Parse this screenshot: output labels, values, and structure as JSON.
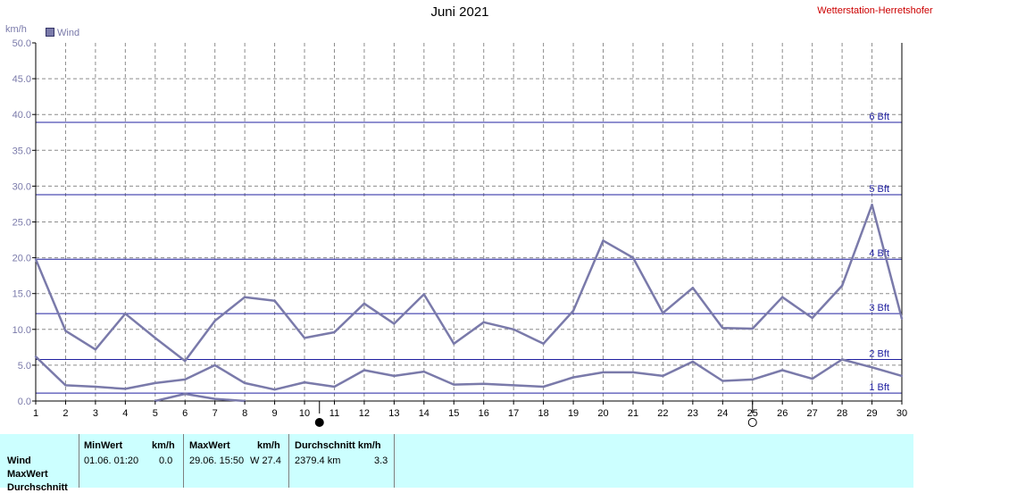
{
  "title": "Juni 2021",
  "station": "Wetterstation-Herretshofer",
  "y_unit": "km/h",
  "legend_label": "Wind",
  "colors": {
    "series": "#7a7aaa",
    "beaufort_line": "#2020a0",
    "grid": "#8c8c8c",
    "station": "#cc0000",
    "stats_bg": "#ccffff"
  },
  "chart_data": {
    "type": "line",
    "title": "Juni 2021",
    "ylabel": "km/h",
    "xlim": [
      1,
      30
    ],
    "ylim": [
      0,
      50
    ],
    "x_ticks": [
      "1",
      "2",
      "3",
      "4",
      "5",
      "6",
      "7",
      "8",
      "9",
      "10",
      "11",
      "12",
      "13",
      "14",
      "15",
      "16",
      "17",
      "18",
      "19",
      "20",
      "21",
      "22",
      "23",
      "24",
      "25",
      "26",
      "27",
      "28",
      "29",
      "30"
    ],
    "y_ticks": [
      "0.0",
      "5.0",
      "10.0",
      "15.0",
      "20.0",
      "25.0",
      "30.0",
      "35.0",
      "40.0",
      "45.0",
      "50.0"
    ],
    "grid": true,
    "legend_position": "top-left",
    "series": [
      {
        "name": "Wind",
        "role": "max",
        "x": [
          1,
          2,
          3,
          4,
          5,
          6,
          7,
          8,
          9,
          10,
          11,
          12,
          13,
          14,
          15,
          16,
          17,
          18,
          19,
          20,
          21,
          22,
          23,
          24,
          25,
          26,
          27,
          28,
          29,
          30
        ],
        "values": [
          19.8,
          9.8,
          7.2,
          12.2,
          8.8,
          5.6,
          11.2,
          14.5,
          14.0,
          8.8,
          9.6,
          13.6,
          10.8,
          14.9,
          8.0,
          11.0,
          10.0,
          8.0,
          12.6,
          22.4,
          20.0,
          12.3,
          15.8,
          10.2,
          10.1,
          14.5,
          11.6,
          16.1,
          27.4,
          11.5
        ]
      },
      {
        "name": "Wind",
        "role": "average",
        "x": [
          1,
          2,
          3,
          4,
          5,
          6,
          7,
          8,
          9,
          10,
          11,
          12,
          13,
          14,
          15,
          16,
          17,
          18,
          19,
          20,
          21,
          22,
          23,
          24,
          25,
          26,
          27,
          28,
          29,
          30
        ],
        "values": [
          6.2,
          2.2,
          2.0,
          1.7,
          2.5,
          3.0,
          5.0,
          2.5,
          1.6,
          2.6,
          2.0,
          4.3,
          3.5,
          4.1,
          2.3,
          2.4,
          2.2,
          2.0,
          3.3,
          4.0,
          4.0,
          3.5,
          5.5,
          2.8,
          3.0,
          4.3,
          3.1,
          5.8,
          4.7,
          3.5
        ]
      },
      {
        "name": "Wind",
        "role": "min",
        "x": [
          5,
          6,
          7,
          8
        ],
        "values": [
          0.0,
          1.0,
          0.3,
          0.0
        ]
      }
    ],
    "reference_lines": [
      {
        "label": "1 Bft",
        "value": 1.1
      },
      {
        "label": "2 Bft",
        "value": 5.8
      },
      {
        "label": "3 Bft",
        "value": 12.2
      },
      {
        "label": "4 Bft",
        "value": 19.8
      },
      {
        "label": "5 Bft",
        "value": 28.8
      },
      {
        "label": "6 Bft",
        "value": 38.9
      }
    ],
    "moon_phases": [
      {
        "day": 10.5,
        "phase": "new-moon"
      },
      {
        "day": 25,
        "phase": "full-moon"
      }
    ]
  },
  "stats": {
    "row_labels": [
      "Wind",
      "MaxWert",
      "Durchschnitt"
    ],
    "min_header": "MinWert",
    "min_unit": "km/h",
    "min_date": "01.06.  01:20",
    "min_value": "0.0",
    "max_header": "MaxWert",
    "max_unit": "km/h",
    "max_date": "29.06.  15:50",
    "max_value": "W 27.4",
    "avg_header": "Durchschnitt km/h",
    "avg_distance": "2379.4 km",
    "avg_value": "3.3"
  }
}
